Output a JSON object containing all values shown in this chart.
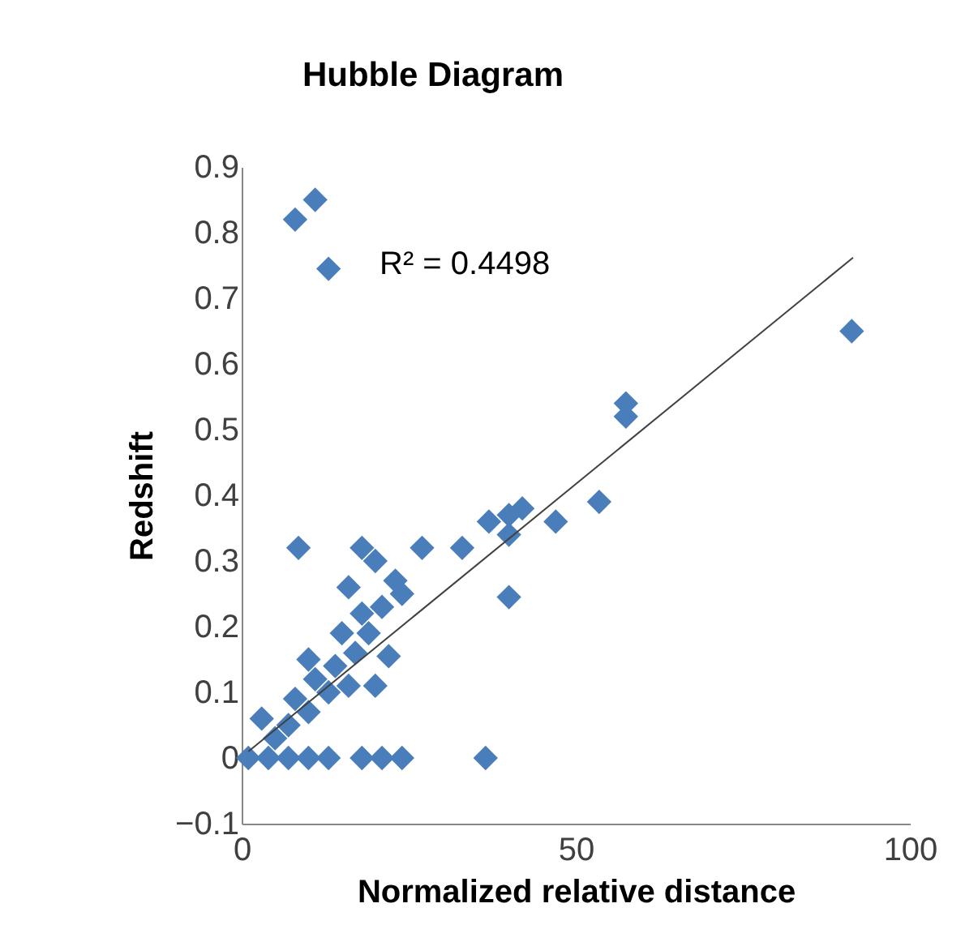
{
  "chart_data": {
    "type": "scatter",
    "title": "Hubble Diagram",
    "xlabel": "Normalized relative distance",
    "ylabel": "Redshift",
    "xlim": [
      0,
      100
    ],
    "xticks": [
      0,
      50,
      100
    ],
    "ylim": [
      -0.1,
      0.9
    ],
    "yticks": [
      -0.1,
      0,
      0.1,
      0.2,
      0.3,
      0.4,
      0.5,
      0.6,
      0.7,
      0.8,
      0.9
    ],
    "grid": false,
    "annotations": [
      "R² = 0.4498"
    ],
    "series": [
      {
        "color": "#4a7ebb",
        "marker": "diamond",
        "x": [
          1,
          4,
          7,
          10,
          13,
          18,
          21,
          24,
          36.5,
          3,
          5,
          7,
          8,
          10,
          11,
          10,
          13,
          14,
          15,
          16,
          17,
          18,
          16,
          20,
          19,
          21,
          22,
          23,
          18,
          20,
          24,
          27,
          8.5,
          33,
          37,
          40,
          42,
          40,
          40,
          47,
          53.5,
          57.5,
          57.5,
          91.3,
          8,
          11,
          13
        ],
        "values": [
          0,
          0,
          0,
          0,
          0,
          0,
          0,
          0,
          0,
          0.06,
          0.03,
          0.05,
          0.09,
          0.07,
          0.12,
          0.15,
          0.1,
          0.14,
          0.19,
          0.11,
          0.16,
          0.22,
          0.26,
          0.11,
          0.19,
          0.23,
          0.155,
          0.27,
          0.32,
          0.3,
          0.25,
          0.32,
          0.32,
          0.32,
          0.36,
          0.37,
          0.38,
          0.34,
          0.245,
          0.36,
          0.39,
          0.52,
          0.54,
          0.65,
          0.82,
          0.85,
          0.745
        ]
      },
      {
        "type": "line",
        "color": "#404040",
        "x": [
          1,
          91.5
        ],
        "values": [
          0.01,
          0.762
        ]
      }
    ]
  }
}
